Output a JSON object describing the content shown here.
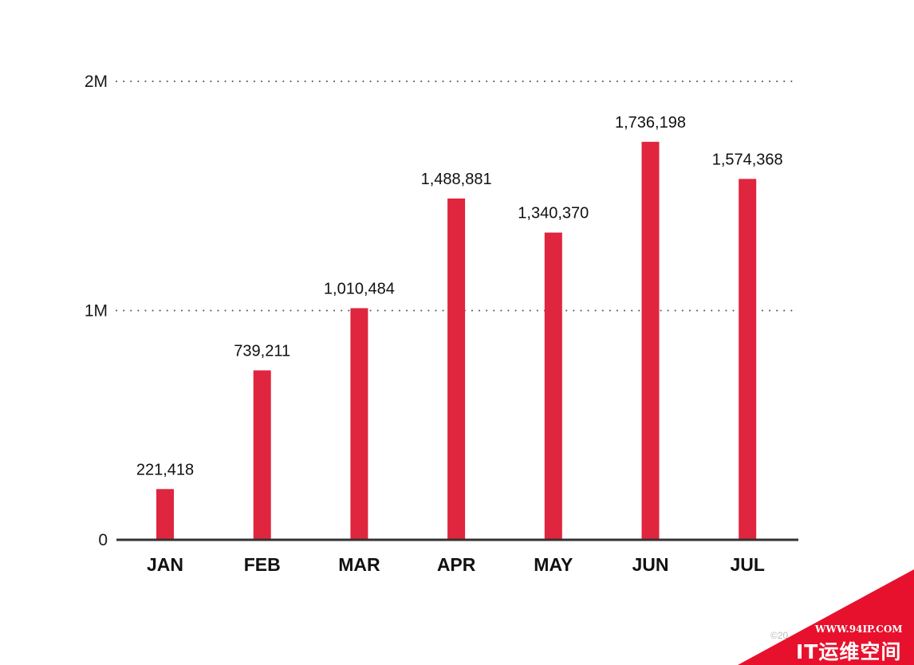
{
  "chart_data": {
    "type": "bar",
    "title": "",
    "xlabel": "",
    "ylabel": "",
    "categories": [
      "JAN",
      "FEB",
      "MAR",
      "APR",
      "MAY",
      "JUN",
      "JUL"
    ],
    "values": [
      221418,
      739211,
      1010484,
      1488881,
      1340370,
      1736198,
      1574368
    ],
    "data_labels": [
      "221,418",
      "739,211",
      "1,010,484",
      "1,488,881",
      "1,340,370",
      "1,736,198",
      "1,574,368"
    ],
    "ylim": [
      0,
      2000000
    ],
    "yticks": [
      0,
      1000000,
      2000000
    ],
    "ytick_labels": [
      "0",
      "1M",
      "2M"
    ],
    "grid": "dotted",
    "legend": "none",
    "bar_color": "#e0253e",
    "axis_color": "#333333"
  },
  "copyright_text": "©20",
  "watermark": {
    "url": "WWW.94IP.COM",
    "name": "IT运维空间",
    "color": "#e8112d"
  }
}
